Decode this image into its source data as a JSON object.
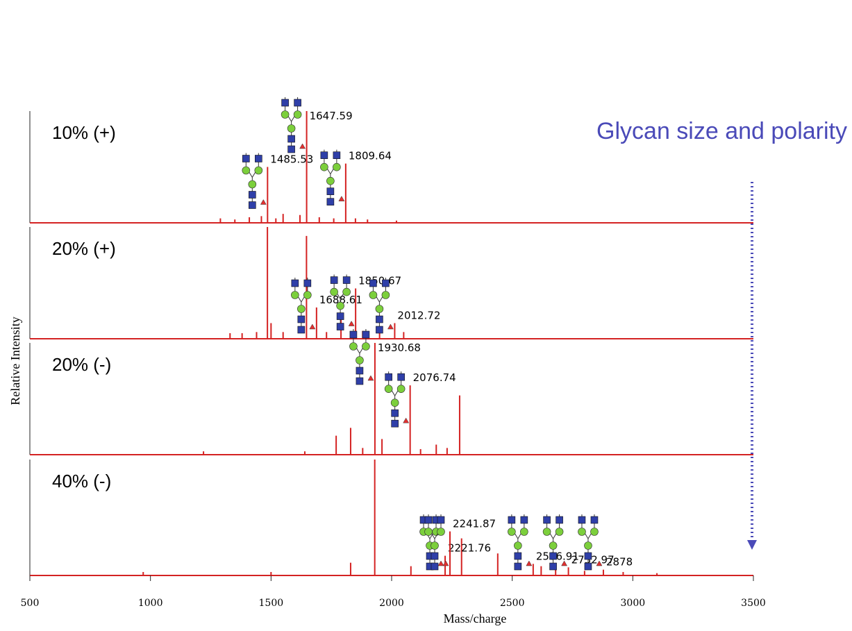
{
  "chart_data": {
    "type": "spectrum",
    "xlabel": "Mass/charge",
    "ylabel": "Relative Intensity",
    "annotation": "Glycan size and polarity",
    "xlim": [
      500,
      3500
    ],
    "xticks": [
      500,
      1000,
      1500,
      2000,
      2500,
      3000,
      3500
    ],
    "ylim": [
      0,
      100
    ],
    "color": "#d42222",
    "annotation_color": "#4a4ab8",
    "panels": [
      {
        "label": "10% (+)",
        "peaks": {
          "x": [
            1485.53,
            1647.59,
            1809.64
          ],
          "values": [
            50,
            100,
            53
          ]
        },
        "minor_peaks": {
          "x": [
            1290,
            1350,
            1410,
            1460,
            1520,
            1550,
            1620,
            1700,
            1760,
            1850,
            1900,
            2020
          ],
          "values": [
            4,
            3,
            5,
            6,
            4,
            8,
            7,
            5,
            4,
            4,
            3,
            2
          ]
        }
      },
      {
        "label": "20% (+)",
        "peaks": {
          "x": [
            1688.61,
            1850.67,
            2012.72
          ],
          "values": [
            28,
            45,
            14
          ]
        },
        "minor_peaks": {
          "x": [
            1330,
            1380,
            1440,
            1485,
            1500,
            1550,
            1647,
            1730,
            1790,
            1880,
            1950,
            2050
          ],
          "values": [
            5,
            5,
            6,
            100,
            14,
            6,
            92,
            6,
            17,
            7,
            5,
            6
          ]
        }
      },
      {
        "label": "20% (-)",
        "peaks": {
          "x": [
            1930.68,
            2076.74
          ],
          "values": [
            100,
            62
          ]
        },
        "minor_peaks": {
          "x": [
            1220,
            1640,
            1770,
            1830,
            1880,
            1960,
            2120,
            2185,
            2230,
            2282
          ],
          "values": [
            3,
            3,
            17,
            24,
            6,
            14,
            5,
            9,
            6,
            53
          ]
        }
      },
      {
        "label": "40% (-)",
        "peaks": {
          "x": [
            2221.76,
            2241.87,
            2586.91,
            2732.97,
            2878.0
          ],
          "values": [
            17,
            38,
            10,
            7,
            5
          ]
        },
        "minor_peaks": {
          "x": [
            970,
            1500,
            1830,
            1930,
            2080,
            2290,
            2440,
            2620,
            2680,
            2800,
            2960,
            3100
          ],
          "values": [
            3,
            3,
            11,
            100,
            8,
            32,
            19,
            8,
            6,
            4,
            3,
            2
          ]
        }
      }
    ]
  }
}
